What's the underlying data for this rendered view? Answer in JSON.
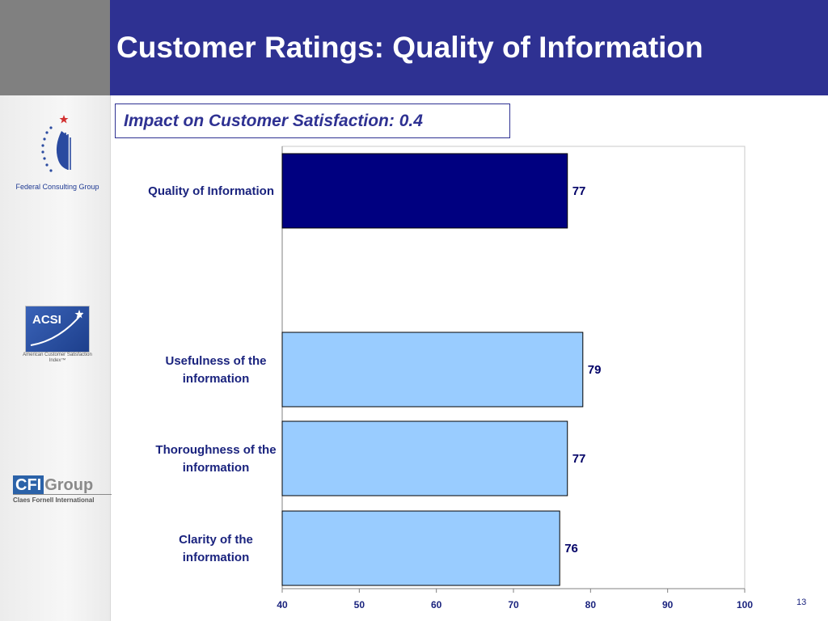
{
  "slide": {
    "title": "Customer Ratings: Quality of Information",
    "impact": "Impact on Customer Satisfaction: 0.4",
    "page_number": "13"
  },
  "logos": {
    "fcg_label": "Federal Consulting Group",
    "acsi_text": "ACSI",
    "acsi_caption": "American Customer Satisfaction Index™",
    "cfi_box": "CFI",
    "cfi_group": "Group",
    "cfi_sub": "Claes Fornell International"
  },
  "colors": {
    "title_bar": "#2e3192",
    "summary_bar": "#000080",
    "detail_bar": "#99ccff"
  },
  "chart_data": {
    "type": "bar",
    "orientation": "horizontal",
    "categories": [
      [
        "Quality of Information"
      ],
      [
        "Usefulness of the",
        "information"
      ],
      [
        "Thoroughness of the",
        "information"
      ],
      [
        "Clarity of the",
        "information"
      ]
    ],
    "values": [
      77,
      79,
      77,
      76
    ],
    "data_labels": [
      "77",
      "79",
      "77",
      "76"
    ],
    "xlim": [
      40,
      100
    ],
    "xticks": [
      40,
      50,
      60,
      70,
      80,
      90,
      100
    ],
    "grid": false,
    "legend": "none"
  }
}
